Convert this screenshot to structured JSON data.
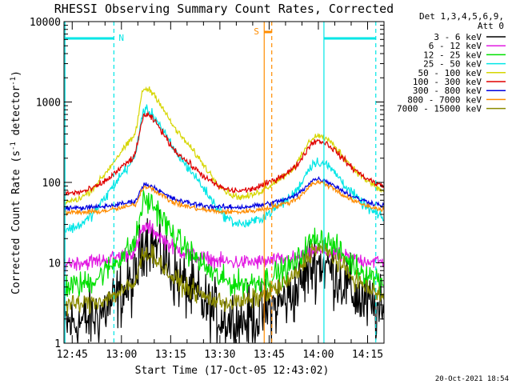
{
  "chart_data": {
    "type": "line",
    "title": "RHESSI Observing Summary Count Rates, Corrected",
    "xlabel": "Start Time (17-Oct-05 12:43:02)",
    "ylabel_parts": [
      "Corrected Count Rate (s",
      "-1",
      " detector",
      "-1",
      ")"
    ],
    "x_ticks": [
      "12:45",
      "13:00",
      "13:15",
      "13:30",
      "13:45",
      "14:00",
      "14:15"
    ],
    "x_tick_minutes": [
      2,
      17,
      32,
      47,
      62,
      77,
      92
    ],
    "x_range_minutes": [
      -0.5,
      97
    ],
    "y_scale": "log",
    "y_range": [
      1,
      10000
    ],
    "y_ticks": [
      "1",
      "10",
      "100",
      "1000",
      "10000"
    ],
    "legend_header": [
      "Det 1,3,4,5,6,9,",
      "Att 0"
    ],
    "stamp": "20-Oct-2021 18:54",
    "markers": {
      "saa_label": "S",
      "night_label": "N",
      "cyan_lines_minutes": [
        -0.2,
        14.7,
        78.7,
        94.5
      ],
      "orange_lines_minutes": [
        60.5,
        62.8
      ]
    },
    "series": [
      {
        "name": "3 - 6 keV",
        "color": "#000000",
        "base": 1.7,
        "flare1": 20,
        "flare2": 10,
        "noise": 0.5
      },
      {
        "name": "6 - 12 keV",
        "color": "#e21ce2",
        "base": 10,
        "flare1": 28,
        "flare2": 14,
        "noise": 0.12
      },
      {
        "name": "12 - 25 keV",
        "color": "#00e000",
        "base": 5,
        "flare1": 60,
        "flare2": 20,
        "noise": 0.2
      },
      {
        "name": "25 - 50 keV",
        "color": "#00e6e6",
        "base": 25,
        "flare1": 800,
        "flare2": 180,
        "noise": 0.08
      },
      {
        "name": "50 - 100 keV",
        "color": "#d6d600",
        "base": 55,
        "flare1": 1500,
        "flare2": 380,
        "noise": 0.05
      },
      {
        "name": "100 - 300 keV",
        "color": "#e00000",
        "base": 72,
        "flare1": 700,
        "flare2": 330,
        "noise": 0.05
      },
      {
        "name": "300 - 800 keV",
        "color": "#0000e0",
        "base": 48,
        "flare1": 95,
        "flare2": 110,
        "noise": 0.04
      },
      {
        "name": "800 - 7000 keV",
        "color": "#ff8c00",
        "base": 42,
        "flare1": 90,
        "flare2": 100,
        "noise": 0.04
      },
      {
        "name": "7000 - 15000 keV",
        "color": "#8b8b00",
        "base": 3,
        "flare1": 14,
        "flare2": 15,
        "noise": 0.15
      }
    ]
  }
}
